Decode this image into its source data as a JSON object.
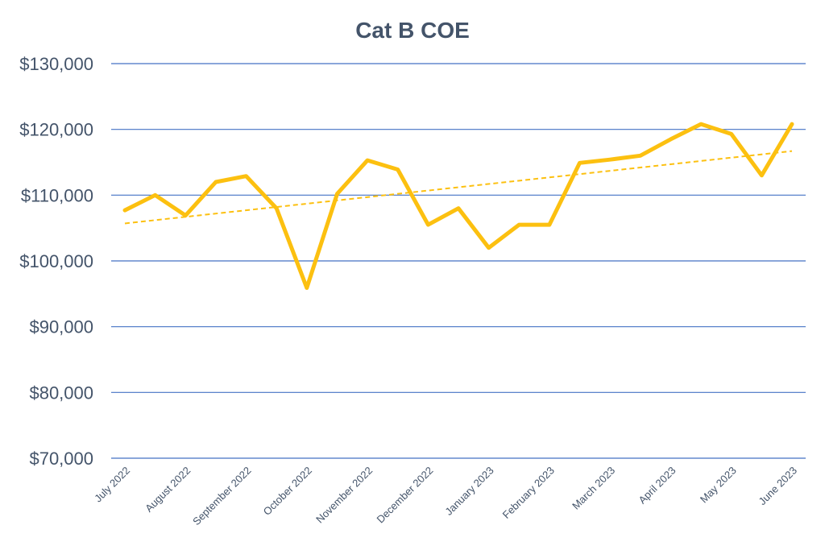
{
  "chart_data": {
    "type": "line",
    "title": "Cat B COE",
    "xlabel": "",
    "ylabel": "",
    "ylim": [
      70000,
      130000
    ],
    "yticks": [
      "$70,000",
      "$80,000",
      "$90,000",
      "$100,000",
      "$110,000",
      "$120,000",
      "$130,000"
    ],
    "ytick_values": [
      70000,
      80000,
      90000,
      100000,
      110000,
      120000,
      130000
    ],
    "xtick_labels": [
      "July 2022",
      "August 2022",
      "September 2022",
      "October 2022",
      "November 2022",
      "December 2022",
      "January 2023",
      "February 2023",
      "March 2023",
      "April 2023",
      "May 2023",
      "June 2023"
    ],
    "grid": true,
    "legend": "none",
    "colors": {
      "line": "#fcc010",
      "trendline": "#fcc010",
      "grid": "#4472c4",
      "text": "#44546a"
    },
    "series": [
      {
        "values": [
          107700,
          110000,
          106900,
          112000,
          112900,
          108000,
          95900,
          110200,
          115300,
          113900,
          105500,
          108000,
          102000,
          105500,
          105500,
          114900,
          115400,
          116000,
          118500,
          120800,
          119300,
          113000,
          120800
        ]
      }
    ],
    "trendline": {
      "style": "dashed",
      "linear": true,
      "start": 105700,
      "end": 116700
    }
  }
}
